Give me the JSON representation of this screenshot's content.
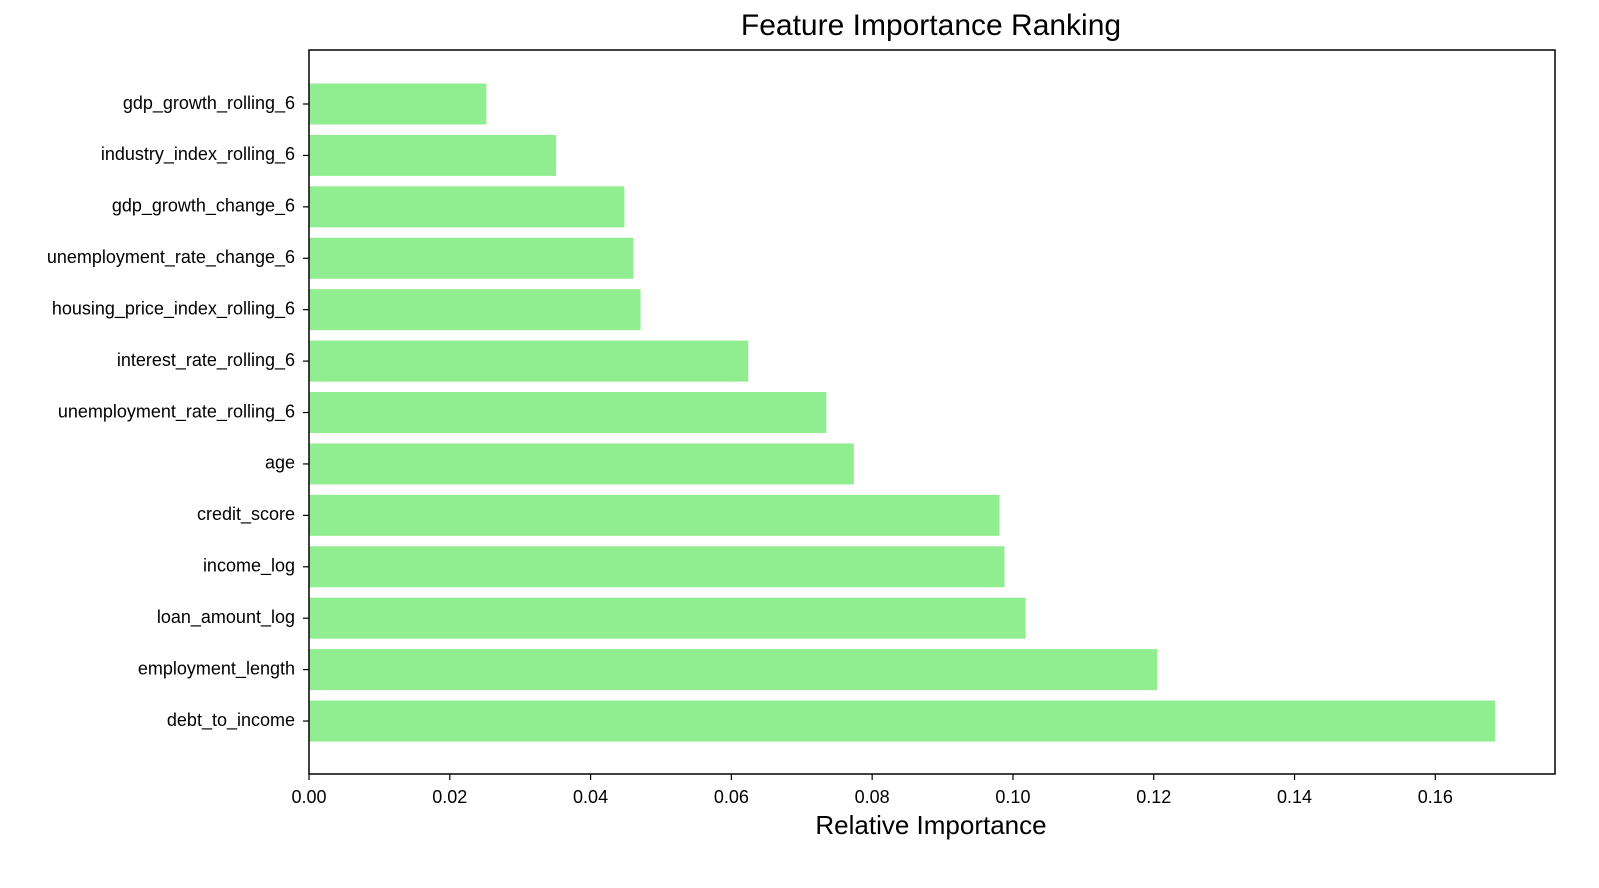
{
  "chart_data": {
    "type": "barh",
    "title": "Feature Importance Ranking",
    "x_label": "Relative Importance",
    "categories": [
      "gdp_growth_rolling_6",
      "industry_index_rolling_6",
      "gdp_growth_change_6",
      "unemployment_rate_change_6",
      "housing_price_index_rolling_6",
      "interest_rate_rolling_6",
      "unemployment_rate_rolling_6",
      "age",
      "credit_score",
      "income_log",
      "loan_amount_log",
      "employment_length",
      "debt_to_income"
    ],
    "values": [
      0.0252,
      0.0351,
      0.0448,
      0.0461,
      0.0471,
      0.0624,
      0.0735,
      0.0774,
      0.0981,
      0.0988,
      0.1018,
      0.1205,
      0.1685
    ],
    "color": "#90ee90",
    "xlim": [
      0,
      0.177
    ],
    "xticks": [
      {
        "value": 0,
        "label": "0.00"
      },
      {
        "value": 0.02,
        "label": "0.02"
      },
      {
        "value": 0.04,
        "label": "0.04"
      },
      {
        "value": 0.06,
        "label": "0.06"
      },
      {
        "value": 0.08,
        "label": "0.08"
      },
      {
        "value": 0.1,
        "label": "0.10"
      },
      {
        "value": 0.12,
        "label": "0.12"
      },
      {
        "value": 0.14,
        "label": "0.14"
      },
      {
        "value": 0.16,
        "label": "0.16"
      }
    ],
    "grid": false
  }
}
